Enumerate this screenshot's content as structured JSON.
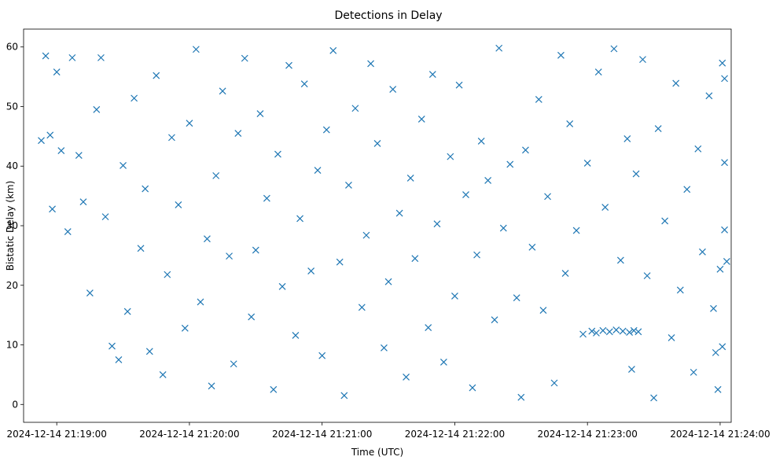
{
  "chart_data": {
    "type": "scatter",
    "title": "Detections in Delay",
    "xlabel": "Time (UTC)",
    "ylabel": "Bistatic Delay (km)",
    "x_ticks": [
      "2024-12-14 21:19:00",
      "2024-12-14 21:20:00",
      "2024-12-14 21:21:00",
      "2024-12-14 21:22:00",
      "2024-12-14 21:23:00",
      "2024-12-14 21:24:00"
    ],
    "y_ticks": [
      0,
      10,
      20,
      30,
      40,
      50,
      60
    ],
    "xlim": [
      "2024-12-14 21:18:45",
      "2024-12-14 21:24:05"
    ],
    "ylim": [
      -3,
      63
    ],
    "marker": "x",
    "color": "#1f77b4",
    "grid": false,
    "series": [
      {
        "points": [
          [
            "2024-12-14 21:18:53",
            44.3
          ],
          [
            "2024-12-14 21:18:55",
            58.5
          ],
          [
            "2024-12-14 21:18:57",
            45.2
          ],
          [
            "2024-12-14 21:18:58",
            32.8
          ],
          [
            "2024-12-14 21:19:00",
            55.8
          ],
          [
            "2024-12-14 21:19:02",
            42.6
          ],
          [
            "2024-12-14 21:19:05",
            29.0
          ],
          [
            "2024-12-14 21:19:07",
            58.2
          ],
          [
            "2024-12-14 21:19:10",
            41.8
          ],
          [
            "2024-12-14 21:19:12",
            34.0
          ],
          [
            "2024-12-14 21:19:15",
            18.7
          ],
          [
            "2024-12-14 21:19:18",
            49.5
          ],
          [
            "2024-12-14 21:19:20",
            58.2
          ],
          [
            "2024-12-14 21:19:22",
            31.5
          ],
          [
            "2024-12-14 21:19:25",
            9.8
          ],
          [
            "2024-12-14 21:19:28",
            7.5
          ],
          [
            "2024-12-14 21:19:30",
            40.1
          ],
          [
            "2024-12-14 21:19:32",
            15.6
          ],
          [
            "2024-12-14 21:19:35",
            51.4
          ],
          [
            "2024-12-14 21:19:38",
            26.2
          ],
          [
            "2024-12-14 21:19:40",
            36.2
          ],
          [
            "2024-12-14 21:19:42",
            8.9
          ],
          [
            "2024-12-14 21:19:45",
            55.2
          ],
          [
            "2024-12-14 21:19:48",
            5.0
          ],
          [
            "2024-12-14 21:19:50",
            21.8
          ],
          [
            "2024-12-14 21:19:52",
            44.8
          ],
          [
            "2024-12-14 21:19:55",
            33.5
          ],
          [
            "2024-12-14 21:19:58",
            12.8
          ],
          [
            "2024-12-14 21:20:00",
            47.2
          ],
          [
            "2024-12-14 21:20:03",
            59.6
          ],
          [
            "2024-12-14 21:20:05",
            17.2
          ],
          [
            "2024-12-14 21:20:08",
            27.8
          ],
          [
            "2024-12-14 21:20:10",
            3.1
          ],
          [
            "2024-12-14 21:20:12",
            38.4
          ],
          [
            "2024-12-14 21:20:15",
            52.6
          ],
          [
            "2024-12-14 21:20:18",
            24.9
          ],
          [
            "2024-12-14 21:20:20",
            6.8
          ],
          [
            "2024-12-14 21:20:22",
            45.5
          ],
          [
            "2024-12-14 21:20:25",
            58.1
          ],
          [
            "2024-12-14 21:20:28",
            14.7
          ],
          [
            "2024-12-14 21:20:30",
            25.9
          ],
          [
            "2024-12-14 21:20:32",
            48.8
          ],
          [
            "2024-12-14 21:20:35",
            34.6
          ],
          [
            "2024-12-14 21:20:38",
            2.5
          ],
          [
            "2024-12-14 21:20:40",
            42.0
          ],
          [
            "2024-12-14 21:20:42",
            19.8
          ],
          [
            "2024-12-14 21:20:45",
            56.9
          ],
          [
            "2024-12-14 21:20:48",
            11.6
          ],
          [
            "2024-12-14 21:20:50",
            31.2
          ],
          [
            "2024-12-14 21:20:52",
            53.8
          ],
          [
            "2024-12-14 21:20:55",
            22.4
          ],
          [
            "2024-12-14 21:20:58",
            39.3
          ],
          [
            "2024-12-14 21:21:00",
            8.2
          ],
          [
            "2024-12-14 21:21:02",
            46.1
          ],
          [
            "2024-12-14 21:21:05",
            59.4
          ],
          [
            "2024-12-14 21:21:08",
            23.9
          ],
          [
            "2024-12-14 21:21:10",
            1.5
          ],
          [
            "2024-12-14 21:21:12",
            36.8
          ],
          [
            "2024-12-14 21:21:15",
            49.7
          ],
          [
            "2024-12-14 21:21:18",
            16.3
          ],
          [
            "2024-12-14 21:21:20",
            28.4
          ],
          [
            "2024-12-14 21:21:22",
            57.2
          ],
          [
            "2024-12-14 21:21:25",
            43.8
          ],
          [
            "2024-12-14 21:21:28",
            9.5
          ],
          [
            "2024-12-14 21:21:30",
            20.6
          ],
          [
            "2024-12-14 21:21:32",
            52.9
          ],
          [
            "2024-12-14 21:21:35",
            32.1
          ],
          [
            "2024-12-14 21:21:38",
            4.6
          ],
          [
            "2024-12-14 21:21:40",
            38.0
          ],
          [
            "2024-12-14 21:21:42",
            24.5
          ],
          [
            "2024-12-14 21:21:45",
            47.9
          ],
          [
            "2024-12-14 21:21:48",
            12.9
          ],
          [
            "2024-12-14 21:21:50",
            55.4
          ],
          [
            "2024-12-14 21:21:52",
            30.3
          ],
          [
            "2024-12-14 21:21:55",
            7.1
          ],
          [
            "2024-12-14 21:21:58",
            41.6
          ],
          [
            "2024-12-14 21:22:00",
            18.2
          ],
          [
            "2024-12-14 21:22:02",
            53.6
          ],
          [
            "2024-12-14 21:22:05",
            35.2
          ],
          [
            "2024-12-14 21:22:08",
            2.8
          ],
          [
            "2024-12-14 21:22:10",
            25.1
          ],
          [
            "2024-12-14 21:22:12",
            44.2
          ],
          [
            "2024-12-14 21:22:15",
            37.6
          ],
          [
            "2024-12-14 21:22:18",
            14.2
          ],
          [
            "2024-12-14 21:22:20",
            59.8
          ],
          [
            "2024-12-14 21:22:22",
            29.6
          ],
          [
            "2024-12-14 21:22:25",
            40.3
          ],
          [
            "2024-12-14 21:22:28",
            17.9
          ],
          [
            "2024-12-14 21:22:30",
            1.2
          ],
          [
            "2024-12-14 21:22:32",
            42.7
          ],
          [
            "2024-12-14 21:22:35",
            26.4
          ],
          [
            "2024-12-14 21:22:38",
            51.2
          ],
          [
            "2024-12-14 21:22:40",
            15.8
          ],
          [
            "2024-12-14 21:22:42",
            34.9
          ],
          [
            "2024-12-14 21:22:45",
            3.6
          ],
          [
            "2024-12-14 21:22:48",
            58.6
          ],
          [
            "2024-12-14 21:22:50",
            22.0
          ],
          [
            "2024-12-14 21:22:52",
            47.1
          ],
          [
            "2024-12-14 21:22:55",
            29.2
          ],
          [
            "2024-12-14 21:22:58",
            11.8
          ],
          [
            "2024-12-14 21:23:00",
            40.5
          ],
          [
            "2024-12-14 21:23:02",
            12.3
          ],
          [
            "2024-12-14 21:23:04",
            12.0
          ],
          [
            "2024-12-14 21:23:05",
            55.8
          ],
          [
            "2024-12-14 21:23:07",
            12.4
          ],
          [
            "2024-12-14 21:23:08",
            33.1
          ],
          [
            "2024-12-14 21:23:10",
            12.2
          ],
          [
            "2024-12-14 21:23:12",
            59.7
          ],
          [
            "2024-12-14 21:23:13",
            12.5
          ],
          [
            "2024-12-14 21:23:15",
            24.2
          ],
          [
            "2024-12-14 21:23:16",
            12.3
          ],
          [
            "2024-12-14 21:23:18",
            44.6
          ],
          [
            "2024-12-14 21:23:19",
            12.1
          ],
          [
            "2024-12-14 21:23:20",
            5.9
          ],
          [
            "2024-12-14 21:23:21",
            12.4
          ],
          [
            "2024-12-14 21:23:22",
            38.7
          ],
          [
            "2024-12-14 21:23:23",
            12.2
          ],
          [
            "2024-12-14 21:23:25",
            57.9
          ],
          [
            "2024-12-14 21:23:27",
            21.6
          ],
          [
            "2024-12-14 21:23:30",
            1.1
          ],
          [
            "2024-12-14 21:23:32",
            46.3
          ],
          [
            "2024-12-14 21:23:35",
            30.8
          ],
          [
            "2024-12-14 21:23:38",
            11.2
          ],
          [
            "2024-12-14 21:23:40",
            53.9
          ],
          [
            "2024-12-14 21:23:42",
            19.2
          ],
          [
            "2024-12-14 21:23:45",
            36.1
          ],
          [
            "2024-12-14 21:23:48",
            5.4
          ],
          [
            "2024-12-14 21:23:50",
            42.9
          ],
          [
            "2024-12-14 21:23:52",
            25.6
          ],
          [
            "2024-12-14 21:23:55",
            51.8
          ],
          [
            "2024-12-14 21:23:58",
            8.7
          ],
          [
            "2024-12-14 21:24:00",
            22.7
          ],
          [
            "2024-12-14 21:24:02",
            40.6
          ],
          [
            "2024-12-14 21:24:02",
            29.3
          ],
          [
            "2024-12-14 21:24:01",
            9.7
          ],
          [
            "2024-12-14 21:24:03",
            24.0
          ],
          [
            "2024-12-14 21:24:01",
            57.3
          ],
          [
            "2024-12-14 21:23:59",
            2.5
          ],
          [
            "2024-12-14 21:23:57",
            16.1
          ],
          [
            "2024-12-14 21:24:02",
            54.7
          ]
        ]
      }
    ]
  }
}
